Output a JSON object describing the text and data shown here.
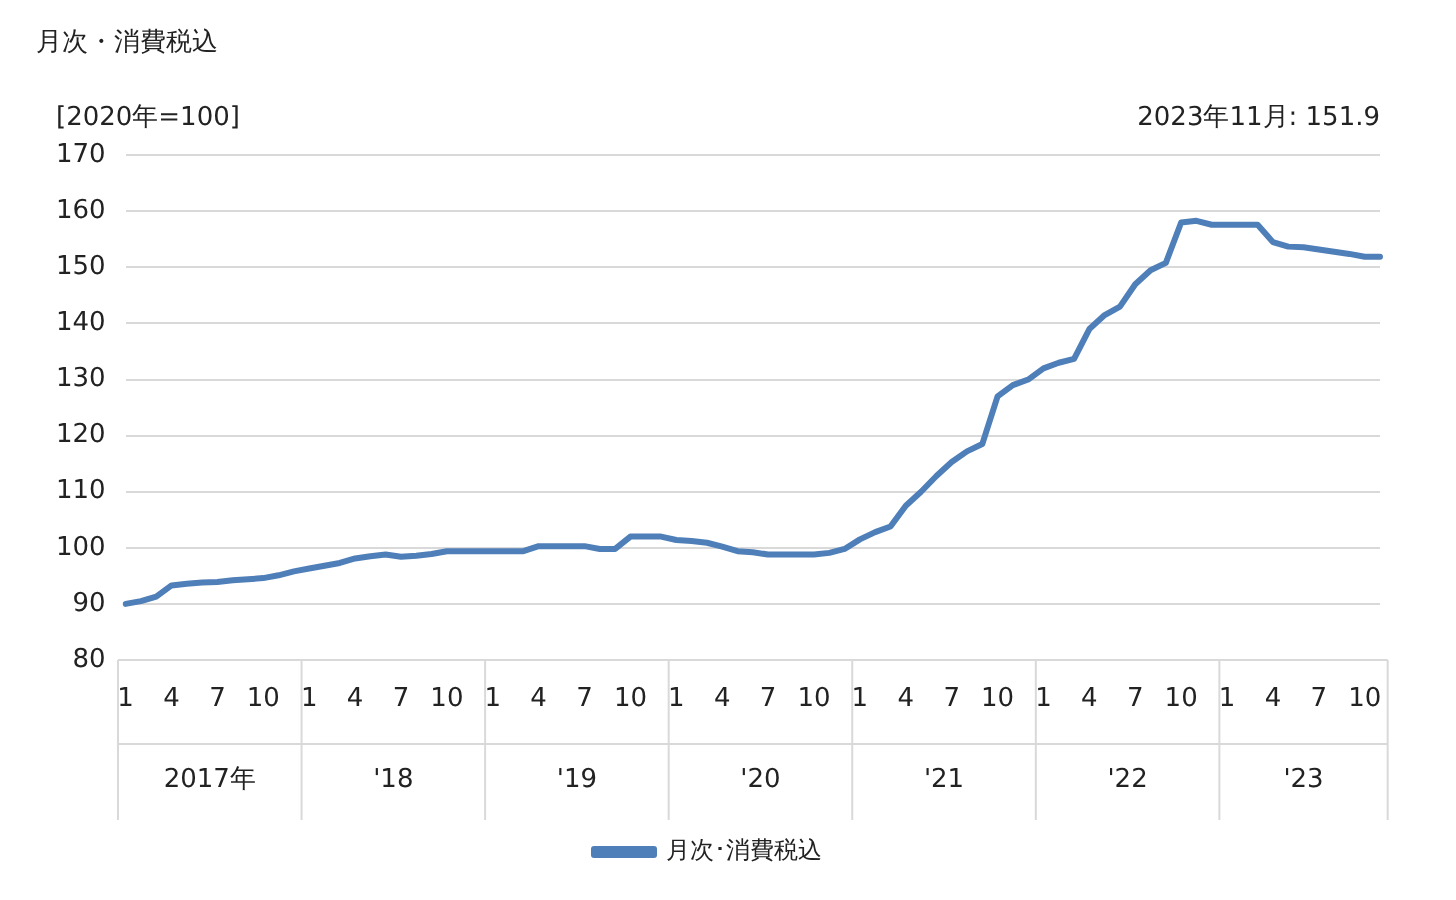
{
  "chart_data": {
    "type": "line",
    "title": "月次・消費税込",
    "ylabel": "[2020年=100]",
    "categories": [
      "1",
      null,
      null,
      "4",
      null,
      null,
      "7",
      null,
      null,
      "10",
      null,
      null,
      "1",
      null,
      null,
      "4",
      null,
      null,
      "7",
      null,
      null,
      "10",
      null,
      null,
      "1",
      null,
      null,
      "4",
      null,
      null,
      "7",
      null,
      null,
      "10",
      null,
      null,
      "1",
      null,
      null,
      "4",
      null,
      null,
      "7",
      null,
      null,
      "10",
      null,
      null,
      "1",
      null,
      null,
      "4",
      null,
      null,
      "7",
      null,
      null,
      "10",
      null,
      null,
      "1",
      null,
      null,
      "4",
      null,
      null,
      "7",
      null,
      null,
      "10",
      null,
      null,
      "1",
      null,
      null,
      "4",
      null,
      null,
      "7",
      null,
      null,
      "10",
      null
    ],
    "series": [
      {
        "name": "月次･消費税込",
        "color": "#4f7fb8",
        "values": [
          90,
          90.5,
          91.3,
          93.3,
          93.6,
          93.8,
          93.9,
          94.2,
          94.4,
          94.6,
          95.1,
          95.8,
          96.3,
          96.8,
          97.3,
          98.1,
          98.5,
          98.8,
          98.4,
          98.6,
          98.9,
          99.4,
          99.4,
          99.4,
          99.4,
          99.4,
          99.4,
          100.3,
          100.3,
          100.3,
          100.3,
          99.8,
          99.8,
          102,
          102,
          102,
          101.4,
          101.2,
          100.9,
          100.2,
          99.4,
          99.2,
          98.8,
          98.8,
          98.8,
          98.8,
          99.1,
          99.8,
          101.5,
          102.8,
          103.8,
          107.5,
          110,
          112.8,
          115.3,
          117.2,
          118.5,
          127,
          129,
          130,
          132,
          133,
          133.7,
          139,
          141.5,
          143,
          147,
          149.5,
          150.8,
          158,
          158.3,
          157.6,
          157.6,
          157.6,
          157.6,
          154.5,
          153.7,
          153.6,
          153.2,
          152.8,
          152.4,
          151.9,
          151.9
        ]
      }
    ],
    "ylim": [
      80,
      170
    ],
    "yticks": [
      80,
      90,
      100,
      110,
      120,
      130,
      140,
      150,
      160,
      170
    ],
    "grid": "y",
    "legend": "bottom",
    "marker": "none",
    "line_style": "solid",
    "annotations": [
      "2017年",
      "'18",
      "'19",
      "'20",
      "'21",
      "'22",
      "'23",
      "2023年11月: 151.9"
    ]
  }
}
